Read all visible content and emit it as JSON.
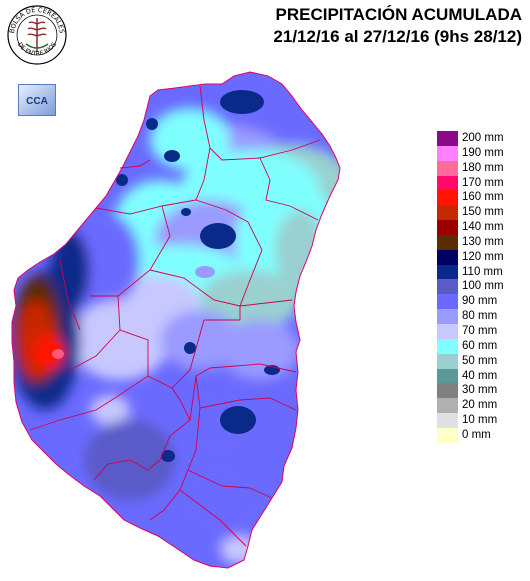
{
  "title": {
    "line1": "PRECIPITACIÓN ACUMULADA",
    "line2": "21/12/16 al 27/12/16 (9hs 28/12)"
  },
  "logos": {
    "seal_text_top": "BOLSA DE CEREALES",
    "seal_text_bottom": "DE ENTRE RIOS",
    "cca_text": "CCA"
  },
  "legend": {
    "items": [
      {
        "label": "200 mm",
        "color": "#8b0a8b"
      },
      {
        "label": "190 mm",
        "color": "#ff80ff"
      },
      {
        "label": "180 mm",
        "color": "#ff6b9a"
      },
      {
        "label": "170 mm",
        "color": "#ff0a6a"
      },
      {
        "label": "160 mm",
        "color": "#ff1400"
      },
      {
        "label": "150 mm",
        "color": "#c82800"
      },
      {
        "label": "140 mm",
        "color": "#9a0000"
      },
      {
        "label": "130 mm",
        "color": "#5a2c00"
      },
      {
        "label": "120 mm",
        "color": "#000060"
      },
      {
        "label": "110 mm",
        "color": "#0a2a8a"
      },
      {
        "label": "100 mm",
        "color": "#5a5ac8"
      },
      {
        "label": "90 mm",
        "color": "#6a6aff"
      },
      {
        "label": "80 mm",
        "color": "#9a9aff"
      },
      {
        "label": "70 mm",
        "color": "#c8c8ff"
      },
      {
        "label": "60 mm",
        "color": "#80ffff"
      },
      {
        "label": "50 mm",
        "color": "#9ad0d0"
      },
      {
        "label": "40 mm",
        "color": "#5a9a9a"
      },
      {
        "label": "30 mm",
        "color": "#808080"
      },
      {
        "label": "20 mm",
        "color": "#b0b0b0"
      },
      {
        "label": "10 mm",
        "color": "#e0e0e0"
      },
      {
        "label": "0 mm",
        "color": "#ffffc8"
      }
    ]
  }
}
